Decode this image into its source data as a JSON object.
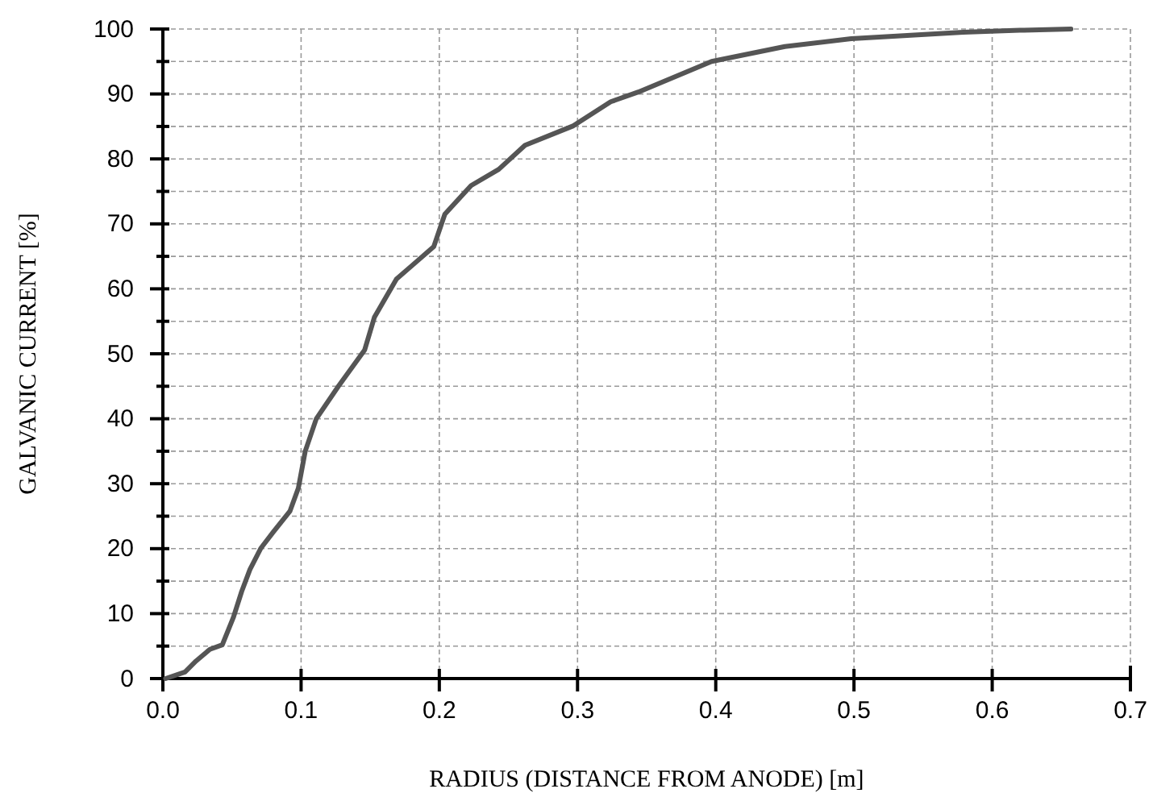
{
  "chart_data": {
    "type": "line",
    "xlabel": "RADIUS (DISTANCE FROM ANODE) [m]",
    "ylabel": "GALVANIC CURRENT [%]",
    "xlim": [
      0,
      0.7
    ],
    "ylim": [
      0,
      100
    ],
    "xticks": [
      {
        "value": 0,
        "label": "0.0"
      },
      0.1,
      0.2,
      0.3,
      0.4,
      0.5,
      0.6,
      0.7
    ],
    "yticks": [
      0,
      {
        "value": 5,
        "label": null
      },
      10,
      {
        "value": 15,
        "label": null
      },
      20,
      {
        "value": 25,
        "label": null
      },
      30,
      {
        "value": 35,
        "label": null
      },
      40,
      {
        "value": 45,
        "label": null
      },
      50,
      {
        "value": 55,
        "label": null
      },
      60,
      {
        "value": 65,
        "label": null
      },
      70,
      {
        "value": 75,
        "label": null
      },
      80,
      {
        "value": 85,
        "label": null
      },
      90,
      {
        "value": 95,
        "label": null
      },
      100
    ],
    "grid": true,
    "line_style": "solid",
    "marker": "none",
    "series": [
      {
        "color": "#555555",
        "x": [
          0.002,
          0.016,
          0.024,
          0.034,
          0.043,
          0.051,
          0.057,
          0.063,
          0.071,
          0.08,
          0.092,
          0.098,
          0.103,
          0.111,
          0.127,
          0.146,
          0.153,
          0.169,
          0.196,
          0.204,
          0.223,
          0.243,
          0.262,
          0.297,
          0.324,
          0.344,
          0.397,
          0.45,
          0.498,
          0.579,
          0.62,
          0.657
        ],
        "values": [
          0,
          1,
          2.7,
          4.5,
          5.2,
          9.4,
          13.4,
          16.8,
          20.1,
          22.6,
          25.8,
          29.3,
          35,
          40,
          45,
          50.6,
          55.6,
          61.5,
          66.5,
          71.5,
          75.9,
          78.4,
          82.1,
          85.1,
          88.8,
          90.3,
          95,
          97.3,
          98.5,
          99.5,
          99.8,
          100
        ]
      }
    ]
  }
}
